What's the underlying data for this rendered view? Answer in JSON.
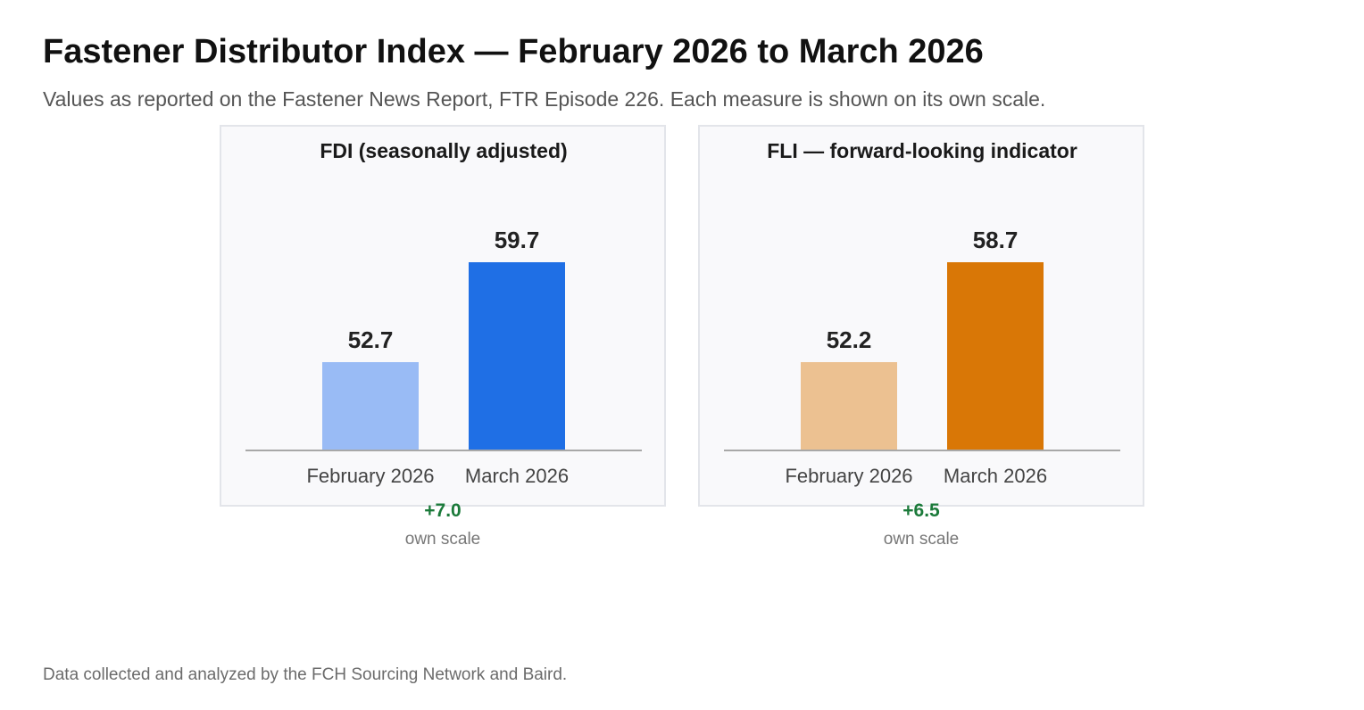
{
  "title": "Fastener Distributor Index — February 2026 to March 2026",
  "subtitle": "Values as reported on the Fastener News Report, FTR Episode 226. Each measure is shown on its own scale.",
  "footer": "Data collected and analyzed by the FCH Sourcing Network and Baird.",
  "chart_data": [
    {
      "type": "bar",
      "title": "FDI (seasonally adjusted)",
      "categories": [
        "February 2026",
        "March 2026"
      ],
      "values": [
        52.7,
        59.7
      ],
      "value_labels": [
        "52.7",
        "59.7"
      ],
      "colors": [
        "#99bbf5",
        "#1f6fe5"
      ],
      "change": "+7.0",
      "change_color": "#1b7a3a",
      "scale_note": "own scale",
      "grid": false,
      "legend": "none"
    },
    {
      "type": "bar",
      "title": "FLI — forward-looking indicator",
      "categories": [
        "February 2026",
        "March 2026"
      ],
      "values": [
        52.2,
        58.7
      ],
      "value_labels": [
        "52.2",
        "58.7"
      ],
      "colors": [
        "#ecc191",
        "#d97706"
      ],
      "change": "+6.5",
      "change_color": "#1b7a3a",
      "scale_note": "own scale",
      "grid": false,
      "legend": "none"
    }
  ]
}
